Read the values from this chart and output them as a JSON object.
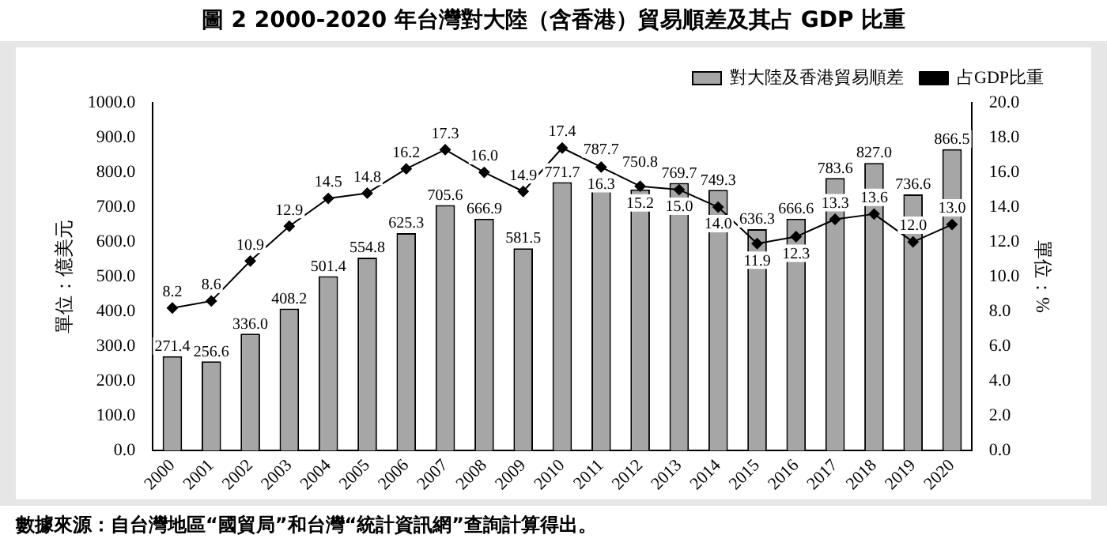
{
  "chart_data": {
    "type": "bar",
    "title": "圖 2 2000-2020 年台灣對大陸（含香港）貿易順差及其占 GDP 比重",
    "ylabel": "單位：億美元",
    "y2label": "單位：%",
    "categories": [
      "2000",
      "2001",
      "2002",
      "2003",
      "2004",
      "2005",
      "2006",
      "2007",
      "2008",
      "2009",
      "2010",
      "2011",
      "2012",
      "2013",
      "2014",
      "2015",
      "2016",
      "2017",
      "2018",
      "2019",
      "2020"
    ],
    "series": [
      {
        "name": "對大陸及香港貿易順差",
        "color": "#a6a6a6",
        "values": [
          271.4,
          256.6,
          336.0,
          408.2,
          501.4,
          554.8,
          625.3,
          705.6,
          666.9,
          581.5,
          771.7,
          787.7,
          750.8,
          769.7,
          749.3,
          636.3,
          666.6,
          783.6,
          827.0,
          736.6,
          866.5
        ],
        "value_labels": [
          "271.4",
          "256.6",
          "336.0",
          "408.2",
          "501.4",
          "554.8",
          "625.3",
          "705.6",
          "666.9",
          "581.5",
          "771.7",
          "787.7",
          "750.8",
          "769.7",
          "749.3",
          "636.3",
          "666.6",
          "783.6",
          "827.0",
          "736.6",
          "866.5"
        ]
      },
      {
        "name": "占GDP比重",
        "type": "line",
        "axis": "y2",
        "color": "#000000",
        "marker": "diamond",
        "values": [
          8.2,
          8.6,
          10.9,
          12.9,
          14.5,
          14.8,
          16.2,
          17.3,
          16.0,
          14.9,
          17.4,
          16.3,
          15.2,
          15.0,
          14.0,
          11.9,
          12.3,
          13.3,
          13.6,
          12.0,
          13.0
        ],
        "value_labels": [
          "8.2",
          "8.6",
          "10.9",
          "12.9",
          "14.5",
          "14.8",
          "16.2",
          "17.3",
          "16.0",
          "14.9",
          "17.4",
          "16.3",
          "15.2",
          "15.0",
          "14.0",
          "11.9",
          "12.3",
          "13.3",
          "13.6",
          "12.0",
          "13.0"
        ]
      }
    ],
    "ylim": [
      0,
      1000
    ],
    "yticks": [
      {
        "value": 0,
        "label": "0.0"
      },
      {
        "value": 100,
        "label": "100.0"
      },
      {
        "value": 200,
        "label": "200.0"
      },
      {
        "value": 300,
        "label": "300.0"
      },
      {
        "value": 400,
        "label": "400.0"
      },
      {
        "value": 500,
        "label": "500.0"
      },
      {
        "value": 600,
        "label": "600.0"
      },
      {
        "value": 700,
        "label": "700.0"
      },
      {
        "value": 800,
        "label": "800.0"
      },
      {
        "value": 900,
        "label": "900.0"
      },
      {
        "value": 1000,
        "label": "1000.0"
      }
    ],
    "y2lim": [
      0,
      20
    ],
    "y2ticks": [
      {
        "value": 0,
        "label": "0.0"
      },
      {
        "value": 2,
        "label": "2.0"
      },
      {
        "value": 4,
        "label": "4.0"
      },
      {
        "value": 6,
        "label": "6.0"
      },
      {
        "value": 8,
        "label": "8.0"
      },
      {
        "value": 10,
        "label": "10.0"
      },
      {
        "value": 12,
        "label": "12.0"
      },
      {
        "value": 14,
        "label": "14.0"
      },
      {
        "value": 16,
        "label": "16.0"
      },
      {
        "value": 18,
        "label": "18.0"
      },
      {
        "value": 20,
        "label": "20.0"
      }
    ],
    "legend": "top",
    "grid": false,
    "annotations": [
      "數據來源：自台灣地區“國貿局”和台灣“統計資訊網”查詢計算得出。"
    ]
  }
}
